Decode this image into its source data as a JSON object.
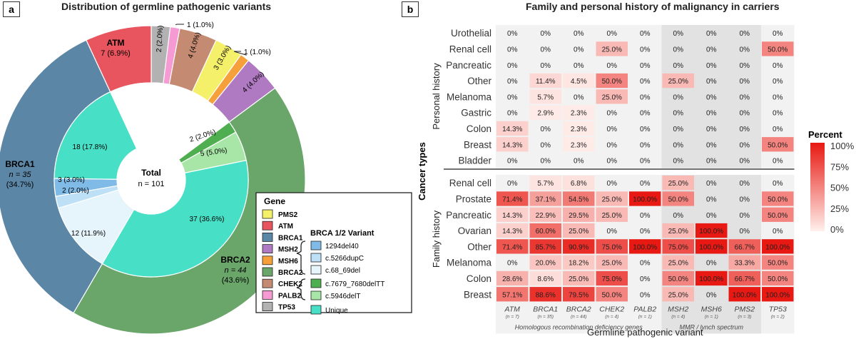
{
  "panel_a": {
    "letter": "a",
    "title": "Distribution of germline pathogenic variants",
    "center_label": "Total",
    "center_sub": "n = 101",
    "legend": {
      "title": "Gene",
      "genes": [
        {
          "name": "PMS2",
          "color": "#f5f06a"
        },
        {
          "name": "ATM",
          "color": "#e8555e"
        },
        {
          "name": "BRCA1",
          "color": "#5b86a6"
        },
        {
          "name": "MSH2",
          "color": "#b07ac2"
        },
        {
          "name": "MSH6",
          "color": "#f6a03c"
        },
        {
          "name": "BRCA2",
          "color": "#6aa56a"
        },
        {
          "name": "CHEK2",
          "color": "#c48a72"
        },
        {
          "name": "PALB2",
          "color": "#f59ad3"
        },
        {
          "name": "TP53",
          "color": "#b2b2b2"
        }
      ],
      "variant_title": "BRCA 1/2 Variant",
      "variants": [
        {
          "name": "1294del40",
          "color": "#7fbbe6"
        },
        {
          "name": "c.5266dupC",
          "color": "#bde0f7"
        },
        {
          "name": "c.68_69del",
          "color": "#e6f4fb"
        },
        {
          "name": "c.7679_7680delTT",
          "color": "#4fae4f"
        },
        {
          "name": "c.5946delT",
          "color": "#a8e6a8"
        },
        {
          "name": "Unique",
          "color": "#47e0c6"
        }
      ]
    },
    "chart_data": {
      "type": "pie",
      "title": "Distribution of germline pathogenic variants",
      "outer": [
        {
          "gene": "TP53",
          "count": 2,
          "label": "2 (2.0%)",
          "color": "#b2b2b2"
        },
        {
          "gene": "PALB2",
          "count": 1,
          "label": "1 (1.0%)",
          "color": "#f59ad3"
        },
        {
          "gene": "CHEK2",
          "count": 4,
          "label": "4 (4.0%)",
          "color": "#c48a72"
        },
        {
          "gene": "PMS2",
          "count": 3,
          "label": "3 (3.0%)",
          "color": "#f5f06a"
        },
        {
          "gene": "MSH6",
          "count": 1,
          "label": "1 (1.0%)",
          "color": "#f6a03c"
        },
        {
          "gene": "MSH2",
          "count": 4,
          "label": "4 (4.0%)",
          "color": "#b07ac2"
        },
        {
          "gene": "BRCA2",
          "count": 44,
          "label": "",
          "color": "#6aa56a",
          "big_name": "BRCA2",
          "big_n": "n = 44",
          "big_pct": "(43.6%)"
        },
        {
          "gene": "BRCA1",
          "count": 35,
          "label": "",
          "color": "#5b86a6",
          "big_name": "BRCA1",
          "big_n": "n = 35",
          "big_pct": "(34.7%)"
        },
        {
          "gene": "ATM",
          "count": 7,
          "label": "",
          "color": "#e8555e",
          "big_name": "ATM",
          "big_pct": "7 (6.9%)"
        }
      ],
      "inner": [
        {
          "variant": "c.7679_7680delTT",
          "count": 2,
          "label": "2 (2.0%)",
          "color": "#4fae4f"
        },
        {
          "variant": "c.5946delT",
          "count": 5,
          "label": "5 (5.0%)",
          "color": "#a8e6a8"
        },
        {
          "variant": "Unique (BRCA2)",
          "count": 37,
          "label": "37 (36.6%)",
          "color": "#47e0c6"
        },
        {
          "variant": "c.68_69del",
          "count": 12,
          "label": "12 (11.9%)",
          "color": "#e6f4fb"
        },
        {
          "variant": "c.5266dupC",
          "count": 2,
          "label": "2 (2.0%)",
          "color": "#bde0f7"
        },
        {
          "variant": "1294del40",
          "count": 3,
          "label": "3 (3.0%)",
          "color": "#7fbbe6"
        },
        {
          "variant": "Unique (BRCA1)",
          "count": 18,
          "label": "18 (17.8%)",
          "color": "#47e0c6"
        }
      ],
      "total": 101
    }
  },
  "panel_b": {
    "letter": "b",
    "title": "Family and personal history of malignancy in carriers",
    "y_title": "Cancer types",
    "x_title": "Germline pathogenic variant",
    "group_personal": "Personal history",
    "group_family": "Family history",
    "hrd_label": "Homologous recombination deficiency genes",
    "mmr_label": "MMR / lynch spectrum",
    "legend_title": "Percent",
    "legend_ticks": [
      "100%",
      "75%",
      "50%",
      "25%",
      "0%"
    ],
    "chart_data": {
      "type": "heatmap",
      "columns": [
        {
          "gene": "ATM",
          "n": "(n = 7)"
        },
        {
          "gene": "BRCA1",
          "n": "(n = 35)"
        },
        {
          "gene": "BRCA2",
          "n": "(n = 44)"
        },
        {
          "gene": "CHEK2",
          "n": "(n = 4)"
        },
        {
          "gene": "PALB2",
          "n": "(n = 1)"
        },
        {
          "gene": "MSH2",
          "n": "(n = 4)"
        },
        {
          "gene": "MSH6",
          "n": "(n = 1)"
        },
        {
          "gene": "PMS2",
          "n": "(n = 3)"
        },
        {
          "gene": "TP53",
          "n": "(n = 2)"
        }
      ],
      "personal_rows": [
        {
          "name": "Urothelial",
          "values": [
            0,
            0,
            0,
            0,
            0,
            0,
            0,
            0,
            0
          ]
        },
        {
          "name": "Renal cell",
          "values": [
            0,
            0,
            0,
            25,
            0,
            0,
            0,
            0,
            50
          ]
        },
        {
          "name": "Pancreatic",
          "values": [
            0,
            0,
            0,
            0,
            0,
            0,
            0,
            0,
            0
          ]
        },
        {
          "name": "Other",
          "values": [
            0,
            11.4,
            4.5,
            50,
            0,
            25,
            0,
            0,
            0
          ]
        },
        {
          "name": "Melanoma",
          "values": [
            0,
            5.7,
            0,
            25,
            0,
            0,
            0,
            0,
            0
          ]
        },
        {
          "name": "Gastric",
          "values": [
            0,
            2.9,
            2.3,
            0,
            0,
            0,
            0,
            0,
            0
          ]
        },
        {
          "name": "Colon",
          "values": [
            14.3,
            0,
            2.3,
            0,
            0,
            0,
            0,
            0,
            0
          ]
        },
        {
          "name": "Breast",
          "values": [
            14.3,
            0,
            2.3,
            0,
            0,
            0,
            0,
            0,
            50
          ]
        },
        {
          "name": "Bladder",
          "values": [
            0,
            0,
            0,
            0,
            0,
            0,
            0,
            0,
            0
          ]
        }
      ],
      "family_rows": [
        {
          "name": "Renal cell",
          "values": [
            0,
            5.7,
            6.8,
            0,
            0,
            25,
            0,
            0,
            0
          ]
        },
        {
          "name": "Prostate",
          "values": [
            71.4,
            37.1,
            54.5,
            25,
            100,
            50,
            0,
            0,
            50
          ]
        },
        {
          "name": "Pancreatic",
          "values": [
            14.3,
            22.9,
            29.5,
            25,
            0,
            0,
            0,
            0,
            50
          ]
        },
        {
          "name": "Ovarian",
          "values": [
            14.3,
            60,
            25,
            0,
            0,
            25,
            100,
            0,
            0
          ]
        },
        {
          "name": "Other",
          "values": [
            71.4,
            85.7,
            90.9,
            75,
            100,
            75,
            100,
            66.7,
            100
          ]
        },
        {
          "name": "Melanoma",
          "values": [
            0,
            20,
            18.2,
            25,
            0,
            25,
            0,
            33.3,
            50
          ]
        },
        {
          "name": "Colon",
          "values": [
            28.6,
            8.6,
            25,
            75,
            0,
            50,
            100,
            66.7,
            50
          ]
        },
        {
          "name": "Breast",
          "values": [
            57.1,
            88.6,
            79.5,
            50,
            0,
            25,
            0,
            100,
            100
          ]
        }
      ]
    }
  }
}
